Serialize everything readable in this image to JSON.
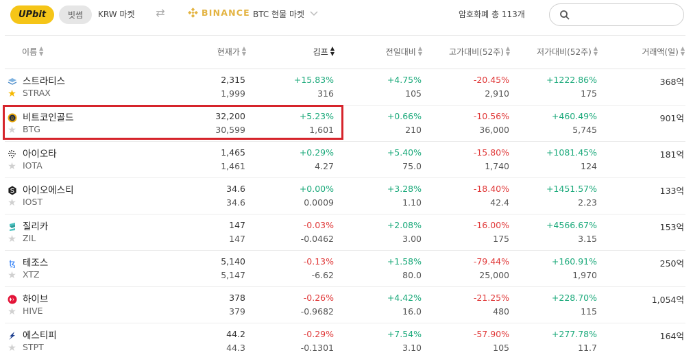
{
  "topbar": {
    "upbit_logo": "UPbit",
    "bitsum_button": "빗썸",
    "krw_market": "KRW 마켓",
    "swap_icon": "swap-icon",
    "binance_logo": "BINANCE",
    "btc_market": "BTC 현물 마켓",
    "total_label": "암호화폐 총 113개",
    "search_placeholder": "",
    "search_value": ""
  },
  "headers": {
    "name": "이름",
    "price": "현재가",
    "kimp": "김프",
    "day": "전일대비",
    "high": "고가대비(52주)",
    "low": "저가대비(52주)",
    "volume": "거래액(일)"
  },
  "colors": {
    "positive": "#1aa97a",
    "negative": "#e03838",
    "highlight": "#d6242b",
    "upbit": "#f5c518",
    "binance": "#e3b341"
  },
  "rows": [
    {
      "name_kr": "스트라티스",
      "name_en": "STRAX",
      "icon": "strax-icon",
      "fav": true,
      "price": "2,315",
      "price_bn": "1,999",
      "kimp": "+15.83%",
      "kimp_diff": "316",
      "kimp_sign": "pos",
      "day": "+4.75%",
      "day_val": "105",
      "day_sign": "pos",
      "high": "-20.45%",
      "high_val": "2,910",
      "high_sign": "neg",
      "low": "+1222.86%",
      "low_val": "175",
      "low_sign": "pos",
      "volume": "368억"
    },
    {
      "name_kr": "비트코인골드",
      "name_en": "BTG",
      "icon": "btg-icon",
      "fav": false,
      "price": "32,200",
      "price_bn": "30,599",
      "kimp": "+5.23%",
      "kimp_diff": "1,601",
      "kimp_sign": "pos",
      "day": "+0.66%",
      "day_val": "210",
      "day_sign": "pos",
      "high": "-10.56%",
      "high_val": "36,000",
      "high_sign": "neg",
      "low": "+460.49%",
      "low_val": "5,745",
      "low_sign": "pos",
      "volume": "901억"
    },
    {
      "name_kr": "아이오타",
      "name_en": "IOTA",
      "icon": "iota-icon",
      "fav": false,
      "price": "1,465",
      "price_bn": "1,461",
      "kimp": "+0.29%",
      "kimp_diff": "4.27",
      "kimp_sign": "pos",
      "day": "+5.40%",
      "day_val": "75.0",
      "day_sign": "pos",
      "high": "-15.80%",
      "high_val": "1,740",
      "high_sign": "neg",
      "low": "+1081.45%",
      "low_val": "124",
      "low_sign": "pos",
      "volume": "181억"
    },
    {
      "name_kr": "아이오에스티",
      "name_en": "IOST",
      "icon": "iost-icon",
      "fav": false,
      "price": "34.6",
      "price_bn": "34.6",
      "kimp": "+0.00%",
      "kimp_diff": "0.0009",
      "kimp_sign": "pos",
      "day": "+3.28%",
      "day_val": "1.10",
      "day_sign": "pos",
      "high": "-18.40%",
      "high_val": "42.4",
      "high_sign": "neg",
      "low": "+1451.57%",
      "low_val": "2.23",
      "low_sign": "pos",
      "volume": "133억"
    },
    {
      "name_kr": "질리카",
      "name_en": "ZIL",
      "icon": "zil-icon",
      "fav": false,
      "price": "147",
      "price_bn": "147",
      "kimp": "-0.03%",
      "kimp_diff": "-0.0462",
      "kimp_sign": "neg",
      "day": "+2.08%",
      "day_val": "3.00",
      "day_sign": "pos",
      "high": "-16.00%",
      "high_val": "175",
      "high_sign": "neg",
      "low": "+4566.67%",
      "low_val": "3.15",
      "low_sign": "pos",
      "volume": "153억"
    },
    {
      "name_kr": "테조스",
      "name_en": "XTZ",
      "icon": "xtz-icon",
      "fav": false,
      "price": "5,140",
      "price_bn": "5,147",
      "kimp": "-0.13%",
      "kimp_diff": "-6.62",
      "kimp_sign": "neg",
      "day": "+1.58%",
      "day_val": "80.0",
      "day_sign": "pos",
      "high": "-79.44%",
      "high_val": "25,000",
      "high_sign": "neg",
      "low": "+160.91%",
      "low_val": "1,970",
      "low_sign": "pos",
      "volume": "250억"
    },
    {
      "name_kr": "하이브",
      "name_en": "HIVE",
      "icon": "hive-icon",
      "fav": false,
      "price": "378",
      "price_bn": "379",
      "kimp": "-0.26%",
      "kimp_diff": "-0.9682",
      "kimp_sign": "neg",
      "day": "+4.42%",
      "day_val": "16.0",
      "day_sign": "pos",
      "high": "-21.25%",
      "high_val": "480",
      "high_sign": "neg",
      "low": "+228.70%",
      "low_val": "115",
      "low_sign": "pos",
      "volume": "1,054억"
    },
    {
      "name_kr": "에스티피",
      "name_en": "STPT",
      "icon": "stpt-icon",
      "fav": false,
      "price": "44.2",
      "price_bn": "44.3",
      "kimp": "-0.29%",
      "kimp_diff": "-0.1301",
      "kimp_sign": "neg",
      "day": "+7.54%",
      "day_val": "3.10",
      "day_sign": "pos",
      "high": "-57.90%",
      "high_val": "105",
      "high_sign": "neg",
      "low": "+277.78%",
      "low_val": "11.7",
      "low_sign": "pos",
      "volume": "164억"
    }
  ]
}
